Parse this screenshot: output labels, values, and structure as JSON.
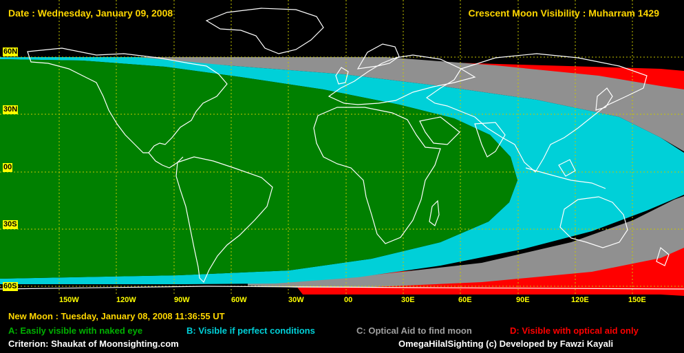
{
  "header": {
    "date": "Date : Wednesday, January 09, 2008",
    "visibility": "Crescent Moon Visibility : Muharram  1429"
  },
  "lat_labels": [
    "60N",
    "30N",
    "00",
    "30S",
    "60S"
  ],
  "lon_labels": [
    "150W",
    "120W",
    "90W",
    "60W",
    "30W",
    "00",
    "30E",
    "60E",
    "90E",
    "120E",
    "150E"
  ],
  "new_moon": "New Moon : Tuesday, January 08, 2008  11:36:55  UT",
  "legend": {
    "a": "A: Easily visible with naked eye",
    "b": "B: Visible if perfect conditions",
    "c": "C: Optical Aid to find moon",
    "d": "D: Visible with optical aid only"
  },
  "colors": {
    "a": "#008000",
    "b": "#00d0d8",
    "c": "#909090",
    "d": "#ff0000",
    "grid": "#c8c800",
    "coast": "#ffffff"
  },
  "footer": {
    "criterion": "Criterion: Shaukat of Moonsighting.com",
    "credit": "OmegaHilalSighting  (c)  Developed by Fawzi Kayali"
  }
}
